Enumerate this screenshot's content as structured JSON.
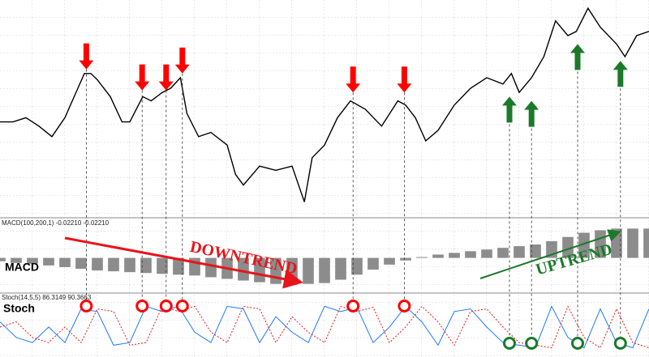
{
  "chart_data": [
    {
      "type": "line",
      "color": "#000000",
      "xlim": [
        0,
        100
      ],
      "ylim": [
        0,
        100
      ],
      "x": [
        0,
        2,
        4,
        6,
        8,
        10,
        12,
        13,
        14,
        15,
        17,
        18.8,
        20,
        22,
        23.3,
        25,
        26.3,
        27.8,
        28.8,
        30.6,
        32.5,
        35,
        36.3,
        37.5,
        40,
        42.5,
        45,
        46.9,
        48.1,
        50,
        52,
        54,
        56.3,
        58.8,
        61.3,
        62.5,
        64,
        65.6,
        67.5,
        70,
        72.5,
        75,
        77.5,
        78.8,
        80,
        81.9,
        83.8,
        85.6,
        87.5,
        88.8,
        90.6,
        92.5,
        95,
        96.3,
        98.1,
        100
      ],
      "values": [
        44,
        44,
        46,
        42,
        37,
        46,
        60,
        67,
        67,
        64,
        56,
        44,
        44,
        56,
        54,
        58,
        60,
        65,
        48,
        37,
        39,
        33,
        19,
        14,
        23,
        21,
        23,
        6,
        27,
        33,
        46,
        54,
        50,
        42,
        54,
        52,
        46,
        35,
        40,
        52,
        60,
        65,
        62,
        67,
        58,
        65,
        75,
        92,
        85,
        87,
        98,
        89,
        81,
        75,
        85,
        87
      ],
      "signals": {
        "sell": {
          "color": "#ff0000",
          "x": [
            13.3,
            21.9,
            25.6,
            28.1,
            54.4,
            62.3
          ],
          "y": [
            69,
            59,
            59,
            67,
            58,
            58
          ]
        },
        "buy": {
          "color": "#1a7a2a",
          "x": [
            78.5,
            81.9,
            89,
            95.6
          ],
          "y": [
            56,
            54,
            81,
            73
          ]
        }
      }
    },
    {
      "type": "bar",
      "title": "MACD(100,200,1) -0.02210 -0.02210",
      "label": "MACD",
      "color": "#8c8c8c",
      "xlim": [
        0,
        100
      ],
      "ylim": [
        -0.04,
        0.045
      ],
      "x": [
        0,
        2.5,
        5,
        7.5,
        10,
        12.5,
        15,
        17.5,
        20,
        22.5,
        25,
        27.5,
        30,
        32.5,
        35,
        37.5,
        40,
        42.5,
        45,
        47.5,
        50,
        52.5,
        55,
        57.5,
        60,
        62.5,
        65,
        67.5,
        70,
        72.5,
        75,
        77.5,
        80,
        82.5,
        85,
        87.5,
        90,
        92.5,
        95,
        97.5,
        100
      ],
      "values": [
        -0.004,
        -0.006,
        -0.007,
        -0.009,
        -0.011,
        -0.013,
        -0.015,
        -0.016,
        -0.017,
        -0.018,
        -0.019,
        -0.02,
        -0.021,
        -0.023,
        -0.025,
        -0.027,
        -0.029,
        -0.031,
        -0.032,
        -0.031,
        -0.03,
        -0.026,
        -0.02,
        -0.014,
        -0.008,
        -0.003,
        0.001,
        0.004,
        0.006,
        0.008,
        0.01,
        0.012,
        0.014,
        0.016,
        0.02,
        0.025,
        0.03,
        0.033,
        0.035,
        0.035,
        0.035
      ],
      "annotations": [
        {
          "text": "DOWNTREND",
          "color": "#e8141b"
        },
        {
          "text": "UPTREND",
          "color": "#1a7a2a"
        }
      ]
    },
    {
      "type": "line",
      "title": "Stoch(14,5,5) 86.3149 90.3663",
      "label": "Stoch",
      "xlim": [
        0,
        100
      ],
      "ylim": [
        0,
        100
      ],
      "x": [
        0,
        2.5,
        5,
        7.5,
        10,
        12.5,
        15,
        17.5,
        20,
        22.5,
        25,
        27.5,
        30,
        32.5,
        35,
        37.5,
        40,
        42.5,
        45,
        47.5,
        50,
        52.5,
        55,
        57.5,
        60,
        62.5,
        65,
        67.5,
        70,
        72.5,
        75,
        77.5,
        80,
        82.5,
        85,
        87.5,
        90,
        92.5,
        95,
        97.5,
        100
      ],
      "series": [
        {
          "color": "#1e78ff",
          "values": [
            60,
            30,
            20,
            50,
            20,
            85,
            80,
            15,
            20,
            90,
            80,
            90,
            40,
            20,
            90,
            85,
            20,
            70,
            40,
            20,
            90,
            80,
            88,
            20,
            50,
            90,
            60,
            15,
            80,
            85,
            50,
            20,
            15,
            10,
            90,
            30,
            10,
            85,
            20,
            10,
            85
          ]
        },
        {
          "color": "#e8141b",
          "dash": true,
          "values": [
            50,
            60,
            30,
            20,
            50,
            20,
            85,
            80,
            15,
            20,
            90,
            80,
            90,
            40,
            20,
            90,
            85,
            20,
            70,
            40,
            20,
            90,
            80,
            88,
            20,
            50,
            90,
            60,
            15,
            80,
            85,
            50,
            20,
            15,
            10,
            90,
            30,
            10,
            85,
            20,
            10
          ]
        }
      ]
    }
  ]
}
